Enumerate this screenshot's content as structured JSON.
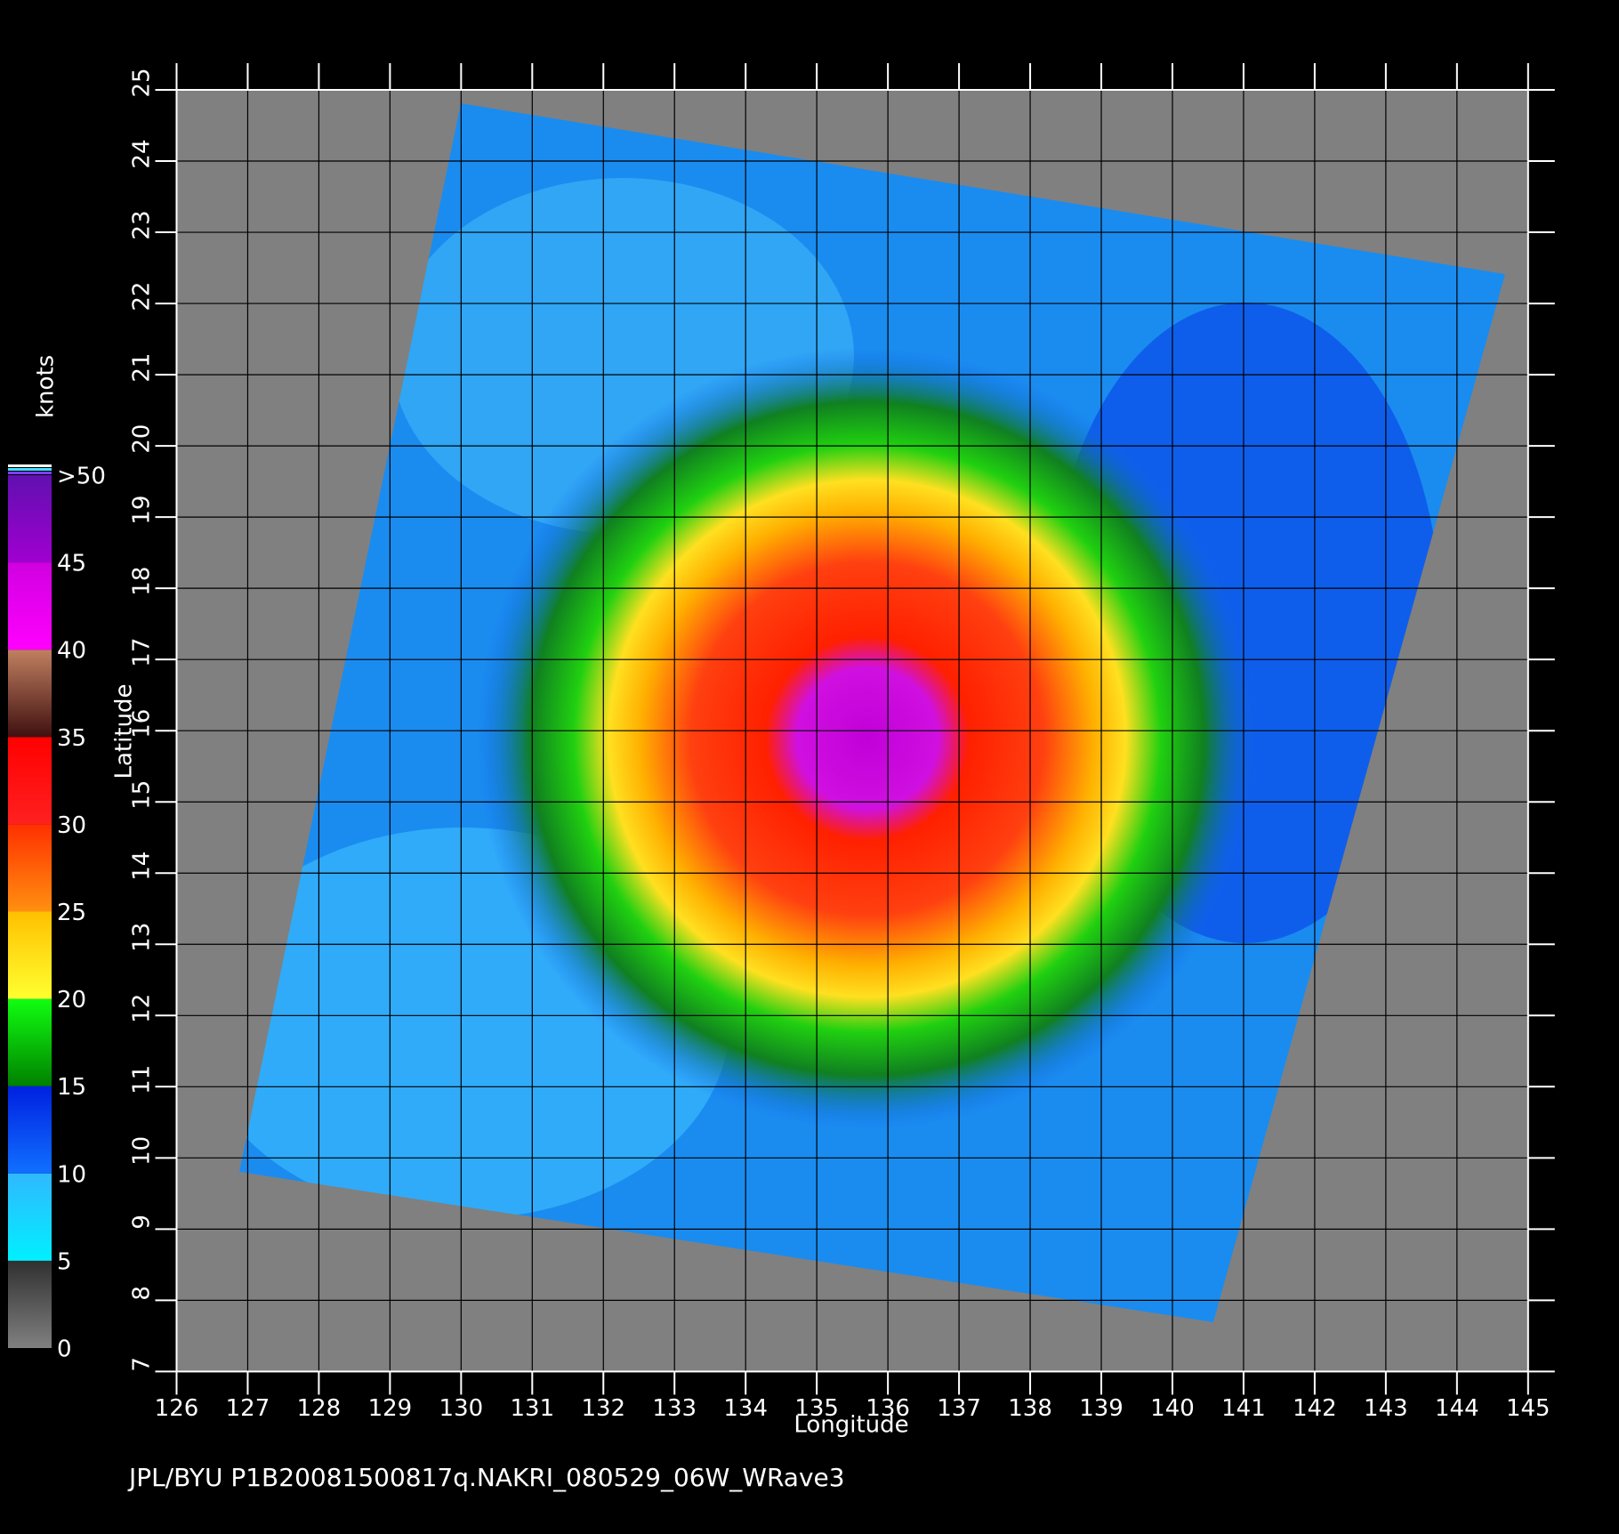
{
  "chart_data": {
    "type": "map",
    "xlabel": "Longitude",
    "ylabel": "Latitude",
    "xlim": [
      126,
      145
    ],
    "ylim": [
      7,
      25
    ],
    "xticks": [
      126,
      127,
      128,
      129,
      130,
      131,
      132,
      133,
      134,
      135,
      136,
      137,
      138,
      139,
      140,
      141,
      142,
      143,
      144,
      145
    ],
    "yticks": [
      7,
      8,
      9,
      10,
      11,
      12,
      13,
      14,
      15,
      16,
      17,
      18,
      19,
      20,
      21,
      22,
      23,
      24,
      25
    ],
    "grid": true,
    "colorbar": {
      "label": "knots",
      "lim": [
        0,
        50
      ],
      "ticks": [
        0,
        5,
        10,
        15,
        20,
        25,
        30,
        35,
        40,
        45,
        {
          "value": 50,
          "label": ">50"
        }
      ],
      "colors": [
        [
          "#808080",
          "#303030"
        ],
        [
          "#00f0ff",
          "#30b8ff"
        ],
        [
          "#1070ff",
          "#0020e0"
        ],
        [
          "#008000",
          "#10ff10"
        ],
        [
          "#ffff30",
          "#ffc000"
        ],
        [
          "#ff9010",
          "#ff3000"
        ],
        [
          "#ff2020",
          "#ff0000"
        ],
        [
          "#401010",
          "#c08060"
        ],
        [
          "#ff00ff",
          "#d000e0"
        ],
        [
          "#a000d0",
          "#6010b0"
        ]
      ]
    },
    "footer": "JPL/BYU  P1B20081500817q.NAKRI_080529_06W_WRave3"
  }
}
